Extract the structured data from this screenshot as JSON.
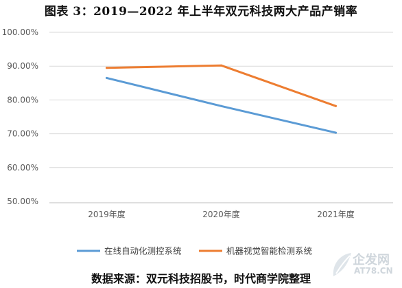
{
  "chart_data": {
    "type": "line",
    "title": "图表 3：2019—2022 年上半年双元科技两大产品产销率",
    "categories": [
      "2019年度",
      "2020年度",
      "2021年度"
    ],
    "series": [
      {
        "name": "在线自动化测控系统",
        "values": [
          86.5,
          78.2,
          70.3
        ],
        "color": "#5b9bd5"
      },
      {
        "name": "机器视觉智能检测系统",
        "values": [
          89.5,
          90.2,
          78.2
        ],
        "color": "#ed7d31"
      }
    ],
    "yticks": [
      "50.00%",
      "60.00%",
      "70.00%",
      "80.00%",
      "90.00%",
      "100.00%"
    ],
    "ylim": [
      50,
      100
    ],
    "grid": true,
    "legend": "bottom",
    "source_note": "数据来源：双元科技招股书，时代商学院整理"
  },
  "watermark": {
    "text_cn": "企发网",
    "text_en": "AT78.CN",
    "icon": "leaf-logo-icon"
  }
}
